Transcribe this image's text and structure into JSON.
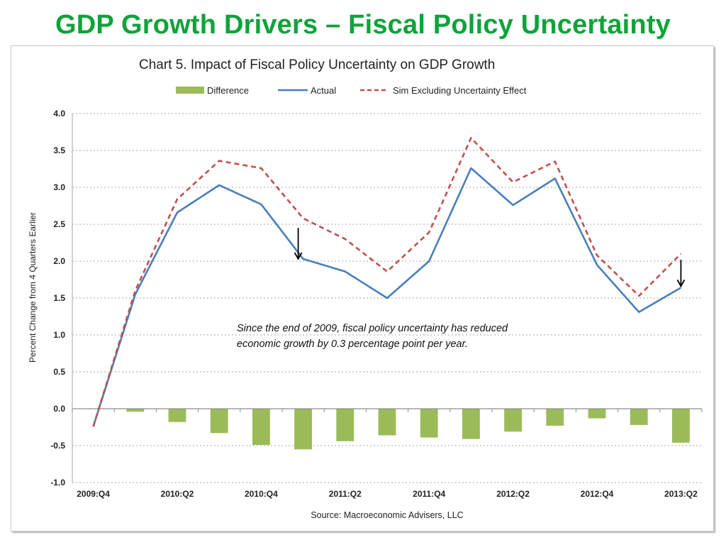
{
  "slide": {
    "title": "GDP Growth Drivers – Fiscal Policy Uncertainty"
  },
  "chart_data": {
    "type": "line",
    "title": "Chart 5.  Impact of Fiscal Policy Uncertainty on GDP Growth",
    "ylabel": "Percent Change  from 4 Quarters Earlier",
    "xlabel": "",
    "source": "Source: Macroeconomic Advisers, LLC",
    "ylim": [
      -1.0,
      4.0
    ],
    "yticks": [
      "4.0",
      "3.5",
      "3.0",
      "2.5",
      "2.0",
      "1.5",
      "1.0",
      "0.5",
      "0.0",
      "-0.5",
      "-1.0"
    ],
    "grid": true,
    "legend_position": "top",
    "categories": [
      "2009:Q4",
      "2010:Q1",
      "2010:Q2",
      "2010:Q3",
      "2010:Q4",
      "2011:Q1",
      "2011:Q2",
      "2011:Q3",
      "2011:Q4",
      "2012:Q1",
      "2012:Q2",
      "2012:Q3",
      "2012:Q4",
      "2013:Q1",
      "2013:Q2"
    ],
    "xtick_labels": [
      "2009:Q4",
      "2010:Q2",
      "2010:Q4",
      "2011:Q2",
      "2011:Q4",
      "2012:Q2",
      "2012:Q4",
      "2013:Q2"
    ],
    "series": [
      {
        "name": "Difference",
        "kind": "bar",
        "color": "#9bbb59",
        "values": [
          null,
          -0.04,
          -0.18,
          -0.33,
          -0.49,
          -0.55,
          -0.44,
          -0.36,
          -0.39,
          -0.41,
          -0.31,
          -0.23,
          -0.13,
          -0.22,
          -0.46
        ]
      },
      {
        "name": "Actual",
        "kind": "line",
        "color": "#4a7ebb",
        "values": [
          -0.24,
          1.55,
          2.66,
          3.03,
          2.77,
          2.03,
          1.86,
          1.5,
          2.0,
          3.26,
          2.76,
          3.12,
          1.95,
          1.31,
          1.64
        ]
      },
      {
        "name": "Sim Excluding Uncertainty Effect",
        "kind": "dashed-line",
        "color": "#c0504d",
        "values": [
          -0.24,
          1.6,
          2.84,
          3.36,
          3.26,
          2.58,
          2.3,
          1.86,
          2.39,
          3.67,
          3.07,
          3.35,
          2.08,
          1.53,
          2.1
        ]
      }
    ],
    "annotation": {
      "lines": [
        "Since the end of 2009, fiscal policy uncertainty has reduced",
        "economic growth by 0.3 percentage point per year."
      ]
    },
    "arrows": [
      {
        "category_index": 5,
        "from_value": 2.45,
        "to_value": 2.03
      },
      {
        "category_index": 14,
        "from_value": 2.02,
        "to_value": 1.66
      }
    ]
  }
}
